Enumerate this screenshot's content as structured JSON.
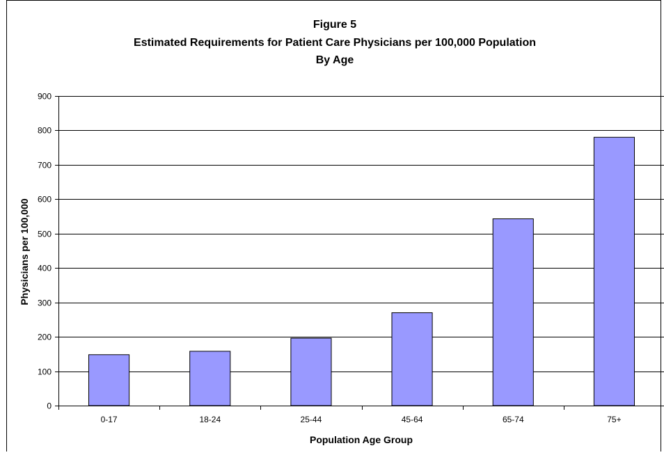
{
  "chart_data": {
    "type": "bar",
    "title_lines": [
      "Figure 5",
      "Estimated Requirements for Patient Care Physicians per 100,000 Population",
      "By Age"
    ],
    "xlabel": "Population Age Group",
    "ylabel": "Physicians per 100,000",
    "categories": [
      "0-17",
      "18-24",
      "25-44",
      "45-64",
      "65-74",
      "75+"
    ],
    "values": [
      148,
      158,
      196,
      270,
      543,
      780
    ],
    "ylim": [
      0,
      900
    ],
    "yticks": [
      "0",
      "100",
      "200",
      "300",
      "400",
      "500",
      "600",
      "700",
      "800",
      "900"
    ],
    "grid": true,
    "legend": "none",
    "colors": {
      "bar_fill": "#9999ff",
      "bar_stroke": "#000000",
      "gridline": "#000000"
    }
  }
}
